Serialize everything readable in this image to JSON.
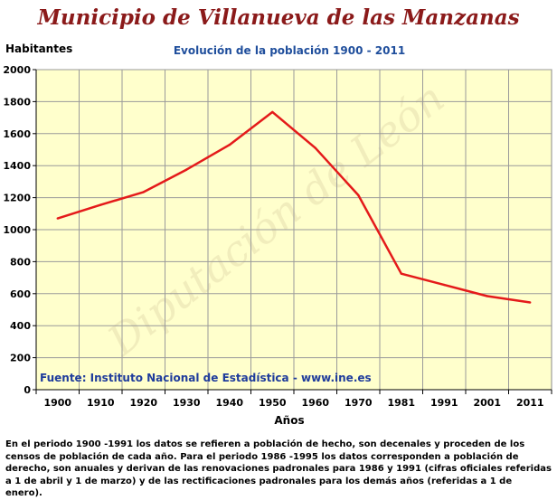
{
  "header": {
    "title": "Municipio de Villanueva de las Manzanas"
  },
  "chart_data": {
    "type": "line",
    "title": "Evolución de la población 1900 - 2011",
    "ylabel": "Habitantes",
    "xlabel": "Años",
    "ylim": [
      0,
      2000
    ],
    "y_ticks": [
      "0",
      "200",
      "400",
      "600",
      "800",
      "1000",
      "1200",
      "1400",
      "1600",
      "1800",
      "2000"
    ],
    "grid": true,
    "categories": [
      "1900",
      "1910",
      "1920",
      "1930",
      "1940",
      "1950",
      "1960",
      "1970",
      "1981",
      "1991",
      "2001",
      "2011"
    ],
    "values": [
      1070,
      1155,
      1235,
      1375,
      1530,
      1735,
      1510,
      1215,
      725,
      655,
      585,
      545
    ],
    "series_color": "#e41a1a",
    "plot_background": "#ffffcc",
    "source": "Fuente: Instituto Nacional de Estadística - www.ine.es",
    "watermark": "Diputación de León"
  },
  "footnote": "En el periodo 1900 -1991 los datos se refieren a población de hecho, son decenales y proceden de los censos de población de cada año. Para el periodo 1986 -1995 los datos corresponden a población de derecho, son anuales y derivan de las renovaciones padronales para 1986 y 1991 (cifras oficiales referidas a 1 de abril y 1 de marzo) y de las rectificaciones padronales para los demás años (referidas a 1 de enero)."
}
